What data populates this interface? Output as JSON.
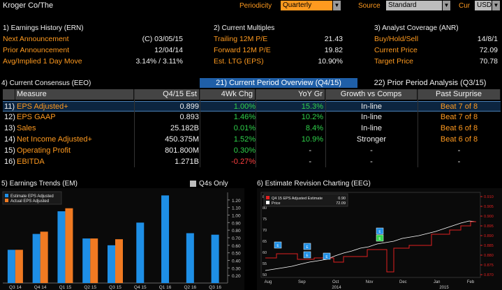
{
  "topbar": {
    "ticker": "Kroger Co/The",
    "periodicity_label": "Periodicity",
    "periodicity_value": "Quarterly",
    "source_label": "Source",
    "source_value": "Standard",
    "cur_label": "Cur",
    "cur_value": "USD"
  },
  "earnings_history": {
    "title": "1) Earnings History (ERN)",
    "rows": [
      {
        "label": "Next Announcement",
        "value": "(C)  03/05/15"
      },
      {
        "label": "Prior Announcement",
        "value": "12/04/14"
      },
      {
        "label": "Avg/Implied 1 Day Move",
        "value": "3.14% / 3.11%"
      }
    ]
  },
  "current_multiples": {
    "title": "2) Current Multiples",
    "rows": [
      {
        "label": "Trailing 12M P/E",
        "value": "21.43"
      },
      {
        "label": "Forward 12M P/E",
        "value": "19.82"
      },
      {
        "label": "Est. LTG (EPS)",
        "value": "10.90%"
      }
    ]
  },
  "analyst_coverage": {
    "title": "3) Analyst Coverage (ANR)",
    "rows": [
      {
        "label": "Buy/Hold/Sell",
        "value": "14/8/1"
      },
      {
        "label": "Current Price",
        "value": "72.09"
      },
      {
        "label": "Target Price",
        "value": "70.78"
      }
    ]
  },
  "consensus": {
    "title": "4) Current Consensus (EEO)",
    "tab_current": "21) Current Period Overview (Q4/15)",
    "tab_prior": "22) Prior Period Analysis (Q3/15)",
    "headers": [
      "Measure",
      "Q4/15 Est",
      "4Wk Chg",
      "YoY Gr",
      "Growth vs Comps",
      "Past Surprise"
    ],
    "rows": [
      {
        "num": "11)",
        "measure": "EPS Adjusted+",
        "est": "0.899",
        "chg": "1.00%",
        "yoy": "15.3%",
        "growth": "In-line",
        "surprise": "Beat 7 of 8"
      },
      {
        "num": "12)",
        "measure": "EPS GAAP",
        "est": "0.893",
        "chg": "1.46%",
        "yoy": "10.2%",
        "growth": "In-line",
        "surprise": "Beat 7 of 8"
      },
      {
        "num": "13)",
        "measure": "Sales",
        "est": "25.182B",
        "chg": "0.01%",
        "yoy": "8.4%",
        "growth": "In-line",
        "surprise": "Beat 6 of 8"
      },
      {
        "num": "14)",
        "measure": "Net Income Adjusted+",
        "est": "450.375M",
        "chg": "1.52%",
        "yoy": "10.9%",
        "growth": "Stronger",
        "surprise": "Beat 6 of 8"
      },
      {
        "num": "15)",
        "measure": "Operating Profit",
        "est": "801.800M",
        "chg": "0.30%",
        "yoy": "-",
        "growth": "-",
        "surprise": "-"
      },
      {
        "num": "16)",
        "measure": "EBITDA",
        "est": "1.271B",
        "chg": "-0.27%",
        "yoy": "-",
        "growth": "-",
        "surprise": "-"
      }
    ]
  },
  "earnings_trends": {
    "title": "5) Earnings Trends (EM)",
    "q4s_only_label": "Q4s Only"
  },
  "estimate_revision": {
    "title": "6) Estimate Revision Charting (EEG)"
  },
  "chart_data": [
    {
      "type": "bar",
      "categories": [
        "Q3 14",
        "Q4 14",
        "Q1 15",
        "Q2 15",
        "Q3 15",
        "Q4 15",
        "Q1 16",
        "Q2 16",
        "Q3 16"
      ],
      "series": [
        {
          "name": "Estimate EPS Adjusted",
          "values": [
            0.54,
            0.75,
            1.05,
            0.69,
            0.6,
            0.9,
            1.26,
            0.76,
            0.74
          ]
        },
        {
          "name": "Actual EPS Adjusted",
          "values": [
            0.54,
            0.78,
            1.09,
            0.69,
            0.68,
            null,
            null,
            null,
            null
          ]
        }
      ],
      "ylim": [
        0.1,
        1.3
      ],
      "yticks": [
        "0.20",
        "0.30",
        "0.40",
        "0.50",
        "0.60",
        "0.70",
        "0.80",
        "0.90",
        "1.00",
        "1.10",
        "1.20"
      ],
      "colors": {
        "estimate": "#1e8fe6",
        "actual": "#f07a22"
      },
      "legend": "top-left"
    },
    {
      "type": "line",
      "x_labels": [
        "Aug",
        "Sep",
        "Oct",
        "Nov",
        "Dec",
        "Jan",
        "Feb"
      ],
      "x_sublabels": [
        "2014",
        "2015"
      ],
      "series": [
        {
          "name": "Q4 15 EPS Adjusted Estimate",
          "last": "0.90",
          "color": "#e02020"
        },
        {
          "name": "Price",
          "last": "72.09",
          "color": "#ffffff"
        }
      ],
      "left_ticks": [
        "50",
        "55",
        "60",
        "65",
        "70",
        "75",
        "80",
        "85"
      ],
      "right_ticks": [
        "0.870",
        "0.875",
        "0.880",
        "0.885",
        "0.890",
        "0.895",
        "0.900",
        "0.905",
        "0.910"
      ],
      "markers": [
        "E",
        "E",
        "E",
        "E",
        "E",
        "E"
      ],
      "legend": "top-left"
    }
  ]
}
